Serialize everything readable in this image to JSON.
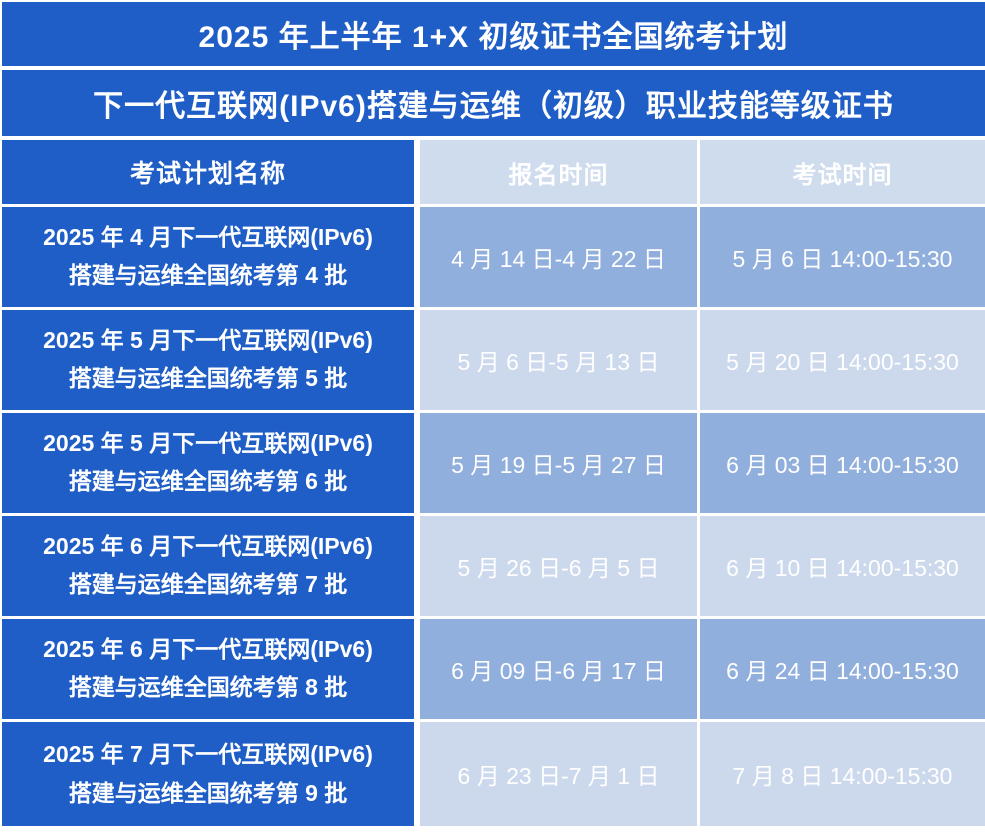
{
  "page": {
    "title": "2025 年上半年 1+X 初级证书全国统考计划",
    "subtitle": "下一代互联网(IPv6)搭建与运维（初级）职业技能等级证书"
  },
  "table": {
    "columns": {
      "plan_name": "考试计划名称",
      "registration_time": "报名时间",
      "exam_time": "考试时间"
    },
    "rows": [
      {
        "name_line1": "2025 年 4 月下一代互联网(IPv6)",
        "name_line2": "搭建与运维全国统考第 4 批",
        "registration": "4 月 14 日-4 月 22 日",
        "exam": "5 月 6 日 14:00-15:30"
      },
      {
        "name_line1": "2025 年 5 月下一代互联网(IPv6)",
        "name_line2": "搭建与运维全国统考第 5 批",
        "registration": "5 月 6 日-5 月 13 日",
        "exam": "5 月 20 日 14:00-15:30"
      },
      {
        "name_line1": "2025 年 5 月下一代互联网(IPv6)",
        "name_line2": "搭建与运维全国统考第 6 批",
        "registration": "5 月 19 日-5 月 27 日",
        "exam": "6 月 03 日 14:00-15:30"
      },
      {
        "name_line1": "2025 年 6 月下一代互联网(IPv6)",
        "name_line2": "搭建与运维全国统考第 7 批",
        "registration": "5 月 26 日-6 月 5 日",
        "exam": "6 月 10 日 14:00-15:30"
      },
      {
        "name_line1": "2025 年 6 月下一代互联网(IPv6)",
        "name_line2": "搭建与运维全国统考第 8 批",
        "registration": "6 月 09 日-6 月 17 日",
        "exam": "6 月 24 日 14:00-15:30"
      },
      {
        "name_line1": "2025 年 7 月下一代互联网(IPv6)",
        "name_line2": "搭建与运维全国统考第 9 批",
        "registration": "6 月 23 日-7 月 1 日",
        "exam": "7 月 8 日 14:00-15:30"
      }
    ]
  },
  "colors": {
    "primary_blue": "#1f5ec7",
    "header_light_blue": "#cfdcee",
    "row_medium_blue": "#91afdd",
    "row_light_blue": "#ccd9ec",
    "text_white": "#ffffff"
  }
}
